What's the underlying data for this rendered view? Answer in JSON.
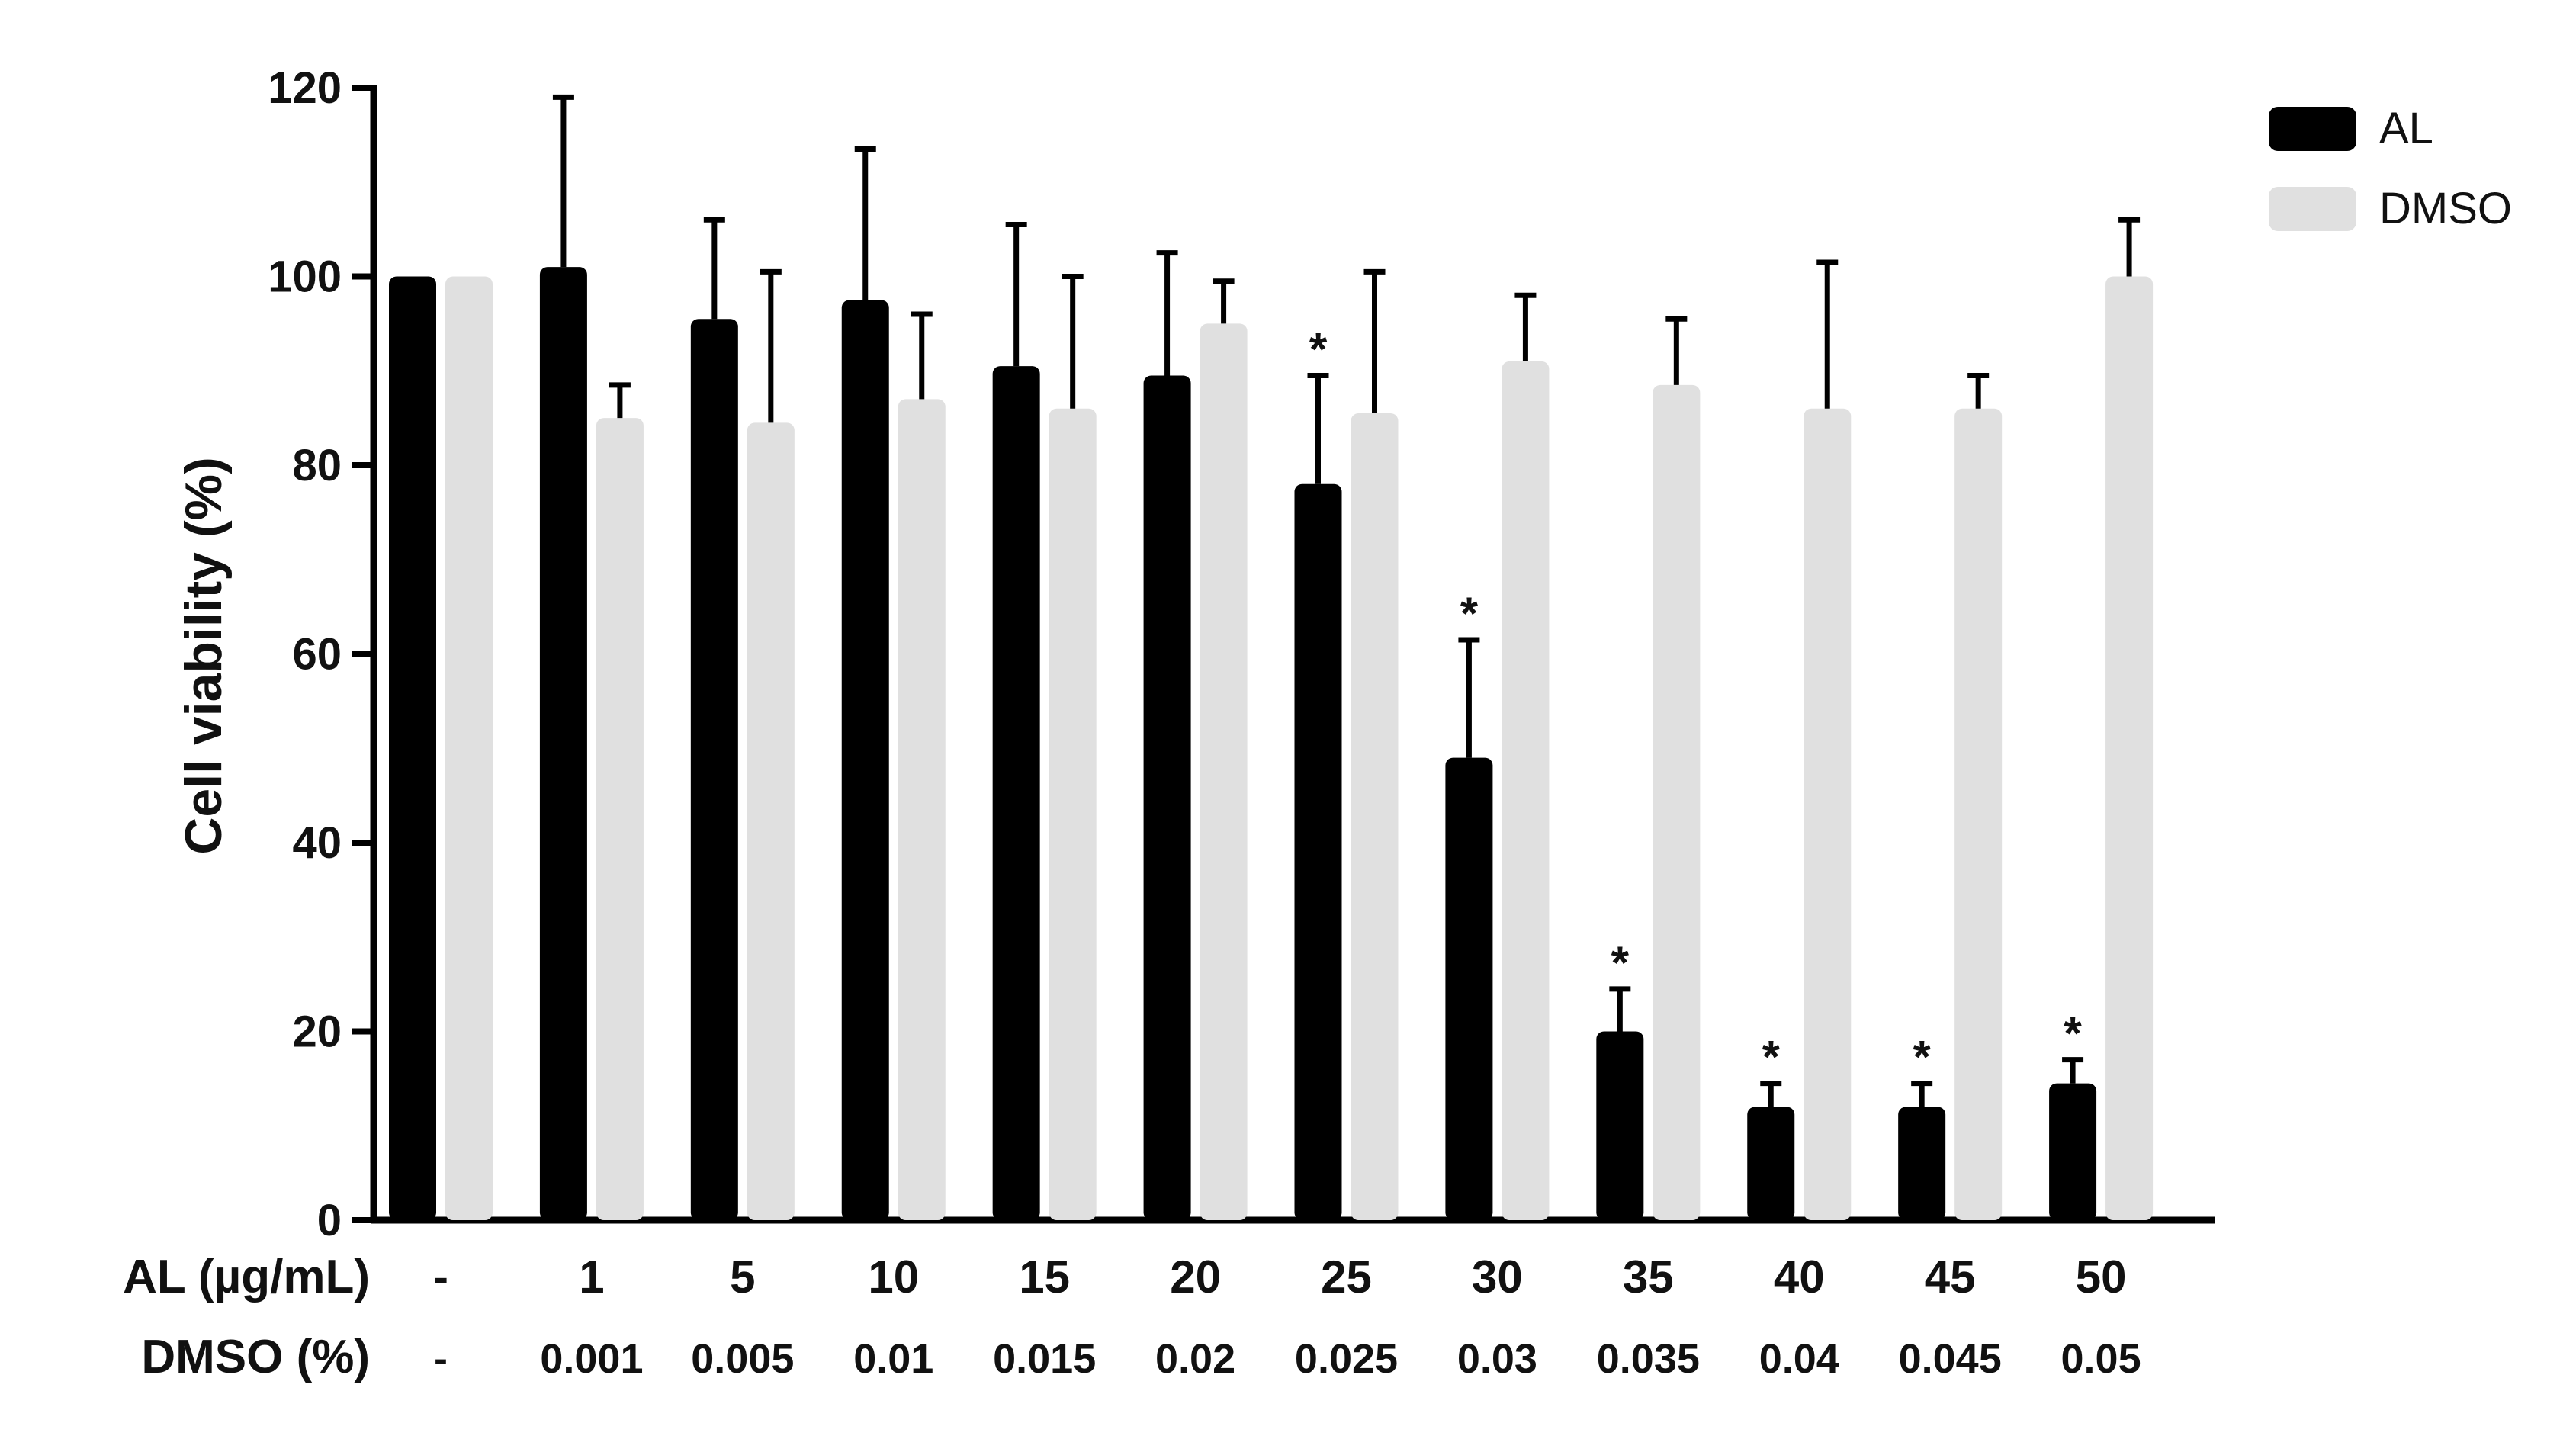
{
  "chart_data": {
    "type": "bar",
    "title": "",
    "ylabel": "Cell viability (%)",
    "ylim": [
      0,
      120
    ],
    "yticks": [
      "0",
      "20",
      "40",
      "60",
      "80",
      "100",
      "120"
    ],
    "row_labels": {
      "al": "AL (µg/mL)",
      "dmso": "DMSO (%)"
    },
    "categories_al": [
      "-",
      "1",
      "5",
      "10",
      "15",
      "20",
      "25",
      "30",
      "35",
      "40",
      "45",
      "50"
    ],
    "categories_dmso": [
      "-",
      "0.001",
      "0.005",
      "0.01",
      "0.015",
      "0.02",
      "0.025",
      "0.03",
      "0.035",
      "0.04",
      "0.045",
      "0.05"
    ],
    "series": [
      {
        "name": "AL",
        "color": "#000000",
        "values": [
          100,
          101,
          95.5,
          97.5,
          90.5,
          89.5,
          78,
          49,
          20,
          12,
          12,
          14.5
        ],
        "errors": [
          0,
          18,
          10.5,
          16,
          15,
          13,
          11.5,
          12.5,
          4.5,
          2.5,
          2.5,
          2.5
        ],
        "significant": [
          false,
          false,
          false,
          false,
          false,
          false,
          true,
          true,
          true,
          true,
          true,
          true
        ]
      },
      {
        "name": "DMSO",
        "color": "#e0e0e0",
        "values": [
          100,
          85,
          84.5,
          87,
          86,
          95,
          85.5,
          91,
          88.5,
          86,
          86,
          100
        ],
        "errors": [
          0,
          3.5,
          16,
          9,
          14,
          4.5,
          15,
          7,
          7,
          15.5,
          3.5,
          6
        ],
        "significant": [
          false,
          false,
          false,
          false,
          false,
          false,
          false,
          false,
          false,
          false,
          false,
          false
        ]
      }
    ],
    "significance_marker": "*",
    "legend": {
      "placement": "top-right"
    }
  }
}
